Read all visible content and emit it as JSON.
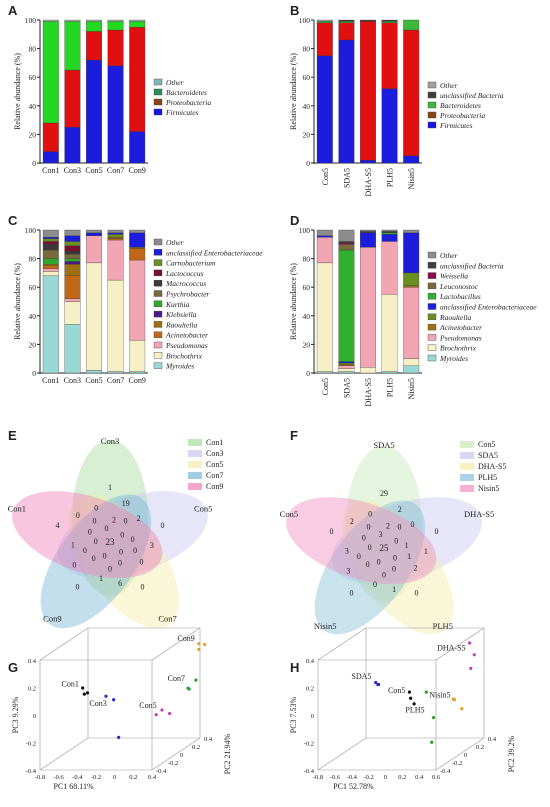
{
  "panels": {
    "A": {
      "letter": "A",
      "type": "stacked-bar",
      "ylabel": "Relative abundance (%)",
      "yticks": [
        "0",
        "20",
        "40",
        "60",
        "80",
        "100"
      ],
      "ylim": [
        0,
        100
      ],
      "categories": [
        "Con1",
        "Con3",
        "Con5",
        "Con7",
        "Con9"
      ],
      "legend": [
        "Other",
        "Bacteroidetes",
        "Proteobacteria",
        "Firmicutes"
      ],
      "colors": [
        "#7fb7bf",
        "#2e8b57",
        "#8b4513",
        "#1414e0"
      ],
      "series": [
        {
          "name": "Firmicutes",
          "color": "#1c1cdc",
          "values": [
            8,
            25,
            72,
            68,
            22
          ]
        },
        {
          "name": "Proteobacteria",
          "color": "#e01010",
          "values": [
            20,
            40,
            20,
            25,
            73
          ]
        },
        {
          "name": "Bacteroidetes",
          "color": "#22d822",
          "values": [
            71,
            34,
            7,
            6,
            4
          ]
        },
        {
          "name": "Other",
          "color": "#b0b0b0",
          "values": [
            1,
            1,
            1,
            1,
            1
          ]
        }
      ]
    },
    "B": {
      "letter": "B",
      "type": "stacked-bar",
      "ylabel": "Relative abundance (%)",
      "yticks": [
        "0",
        "20",
        "40",
        "60",
        "80",
        "100"
      ],
      "ylim": [
        0,
        100
      ],
      "categories": [
        "Con5",
        "SDA5",
        "DHA-S5",
        "PLH5",
        "Nisin5"
      ],
      "legend": [
        "Other",
        "unclassified Bacteria",
        "Bacteroidetes",
        "Proteobacteria",
        "Firmicutes"
      ],
      "colors": [
        "#a0a0a0",
        "#404040",
        "#3cb83c",
        "#8b4513",
        "#1414e0"
      ],
      "series": [
        {
          "name": "Firmicutes",
          "color": "#1c1cdc",
          "values": [
            75,
            86,
            2,
            52,
            5
          ]
        },
        {
          "name": "Proteobacteria",
          "color": "#e01010",
          "values": [
            23,
            12,
            97,
            46,
            88
          ]
        },
        {
          "name": "Bacteroidetes",
          "color": "#3cb83c",
          "values": [
            1,
            1,
            0,
            1,
            7
          ]
        },
        {
          "name": "unclassified Bacteria",
          "color": "#404040",
          "values": [
            0,
            1,
            1,
            1,
            0
          ]
        },
        {
          "name": "Other",
          "color": "#a0a0a0",
          "values": [
            1,
            0,
            0,
            0,
            0
          ]
        }
      ]
    },
    "C": {
      "letter": "C",
      "type": "stacked-bar",
      "ylabel": "Relative abundance (%)",
      "yticks": [
        "0",
        "20",
        "40",
        "60",
        "80",
        "100"
      ],
      "ylim": [
        0,
        100
      ],
      "categories": [
        "Con1",
        "Con3",
        "Con5",
        "Con7",
        "Con9"
      ],
      "legend": [
        "Other",
        "unclassified Enterobacteriaceae",
        "Carnobacterium",
        "Lactococcus",
        "Macrococcus",
        "Psychrobacter",
        "Kurthia",
        "Klebsiella",
        "Raoultella",
        "Acinetobacter",
        "Pseudomonas",
        "Brochothrix",
        "Myroides"
      ],
      "colors": [
        "#8c8c8c",
        "#1c1cdc",
        "#6b8e23",
        "#7a1030",
        "#3a3a3a",
        "#7a6a3a",
        "#2fa82f",
        "#4a1a8a",
        "#a07010",
        "#c06818",
        "#f2a6b4",
        "#f7efc6",
        "#9ad8d6"
      ],
      "series": [
        {
          "name": "Myroides",
          "color": "#9ad8d6",
          "values": [
            68,
            34,
            2,
            1,
            1
          ]
        },
        {
          "name": "Brochothrix",
          "color": "#f7efc6",
          "values": [
            3,
            16,
            75,
            64,
            22
          ]
        },
        {
          "name": "Pseudomonas",
          "color": "#f2a6b4",
          "values": [
            2,
            2,
            19,
            28,
            56
          ]
        },
        {
          "name": "Acinetobacter",
          "color": "#c06818",
          "values": [
            2,
            16,
            0,
            1,
            8
          ]
        },
        {
          "name": "Raoultella",
          "color": "#a07010",
          "values": [
            1,
            8,
            0,
            1,
            1
          ]
        },
        {
          "name": "Klebsiella",
          "color": "#4a1a8a",
          "values": [
            0,
            2,
            0,
            0,
            0
          ]
        },
        {
          "name": "Kurthia",
          "color": "#2fa82f",
          "values": [
            4,
            2,
            0,
            0,
            0
          ]
        },
        {
          "name": "Psychrobacter",
          "color": "#7a6a3a",
          "values": [
            6,
            3,
            0,
            0,
            0
          ]
        },
        {
          "name": "Macrococcus",
          "color": "#3a3a3a",
          "values": [
            4,
            2,
            0,
            0,
            0
          ]
        },
        {
          "name": "Lactococcus",
          "color": "#7a1030",
          "values": [
            2,
            4,
            0,
            0,
            0
          ]
        },
        {
          "name": "Carnobacterium",
          "color": "#6b8e23",
          "values": [
            2,
            3,
            0,
            2,
            0
          ]
        },
        {
          "name": "unclassified Enterobacteriaceae",
          "color": "#1c1cdc",
          "values": [
            1,
            4,
            2,
            1,
            10
          ]
        },
        {
          "name": "Other",
          "color": "#8c8c8c",
          "values": [
            5,
            4,
            2,
            2,
            2
          ]
        }
      ]
    },
    "D": {
      "letter": "D",
      "type": "stacked-bar",
      "ylabel": "Relative abundance (%)",
      "yticks": [
        "0",
        "20",
        "40",
        "60",
        "80",
        "100"
      ],
      "ylim": [
        0,
        100
      ],
      "categories": [
        "Con5",
        "SDA5",
        "DHA-S5",
        "PLH5",
        "Nisin5"
      ],
      "legend": [
        "Other",
        "unclassified Bacteria",
        "Weissella",
        "Leuconostoc",
        "Lactobacillus",
        "unclassified Enterobacteriaceae",
        "Raoultella",
        "Acinetobacter",
        "Pseudomonas",
        "Brochothrix",
        "Myroides"
      ],
      "colors": [
        "#8c8c8c",
        "#404040",
        "#8b0a50",
        "#7a6a3a",
        "#2fb02f",
        "#1c1cdc",
        "#6b8e23",
        "#a07010",
        "#f2a6b4",
        "#f7efc6",
        "#9ad8d6"
      ],
      "series": [
        {
          "name": "Myroides",
          "color": "#9ad8d6",
          "values": [
            1,
            1,
            0,
            1,
            5
          ]
        },
        {
          "name": "Brochothrix",
          "color": "#f7efc6",
          "values": [
            76,
            2,
            4,
            54,
            5
          ]
        },
        {
          "name": "Pseudomonas",
          "color": "#f2a6b4",
          "values": [
            18,
            2,
            84,
            37,
            50
          ]
        },
        {
          "name": "Acinetobacter",
          "color": "#a07010",
          "values": [
            0,
            1,
            0,
            0,
            1
          ]
        },
        {
          "name": "Raoultella",
          "color": "#6b8e23",
          "values": [
            0,
            1,
            0,
            0,
            9
          ]
        },
        {
          "name": "unclassified Enterobacteriaceae",
          "color": "#1c1cdc",
          "values": [
            1,
            1,
            10,
            5,
            28
          ]
        },
        {
          "name": "Lactobacillus",
          "color": "#2fb02f",
          "values": [
            0,
            78,
            0,
            1,
            0
          ]
        },
        {
          "name": "Leuconostoc",
          "color": "#7a6a3a",
          "values": [
            0,
            4,
            0,
            0,
            0
          ]
        },
        {
          "name": "Weissella",
          "color": "#8b0a50",
          "values": [
            0,
            1,
            0,
            0,
            0
          ]
        },
        {
          "name": "unclassified Bacteria",
          "color": "#404040",
          "values": [
            0,
            1,
            1,
            1,
            0
          ]
        },
        {
          "name": "Other",
          "color": "#8c8c8c",
          "values": [
            4,
            8,
            1,
            1,
            2
          ]
        }
      ]
    },
    "E": {
      "letter": "E",
      "type": "venn",
      "sets": [
        {
          "name": "Con1",
          "color": "#a8dca0"
        },
        {
          "name": "Con3",
          "color": "#c8c8f0"
        },
        {
          "name": "Con5",
          "color": "#f4eda8"
        },
        {
          "name": "Con7",
          "color": "#7ab8d8"
        },
        {
          "name": "Con9",
          "color": "#f080b8"
        }
      ],
      "unique_labels": [
        {
          "set": "Con3",
          "text": "Con3"
        },
        {
          "set": "Con5",
          "text": "Con5"
        },
        {
          "set": "Con7",
          "text": "Con7"
        },
        {
          "set": "Con9",
          "text": "Con9"
        },
        {
          "set": "Con1",
          "text": "Con1"
        }
      ],
      "numbers": [
        "1",
        "0",
        "0",
        "0",
        "4",
        "19",
        "3",
        "6",
        "0",
        "0",
        "0",
        "2",
        "0",
        "1",
        "1",
        "0",
        "0",
        "0",
        "0",
        "0",
        "2",
        "0",
        "0",
        "0",
        "0",
        "0",
        "0",
        "0",
        "0",
        "0",
        "23"
      ]
    },
    "F": {
      "letter": "F",
      "type": "venn",
      "sets": [
        {
          "name": "Con5",
          "color": "#c8e8b8"
        },
        {
          "name": "SDA5",
          "color": "#c8c8f0"
        },
        {
          "name": "DHA-S5",
          "color": "#f4eda8"
        },
        {
          "name": "PLH5",
          "color": "#88c0d8"
        },
        {
          "name": "Nisin5",
          "color": "#f090c0"
        }
      ],
      "unique_labels": [
        {
          "set": "SDA5",
          "text": "SDA5"
        },
        {
          "set": "DHA-S5",
          "text": "DHA-S5"
        },
        {
          "set": "PLH5",
          "text": "PLH5"
        },
        {
          "set": "Nisin5",
          "text": "Nisin5"
        },
        {
          "set": "Con5",
          "text": "Con5"
        }
      ],
      "numbers": [
        "29",
        "0",
        "0",
        "0",
        "0",
        "2",
        "1",
        "1",
        "3",
        "2",
        "0",
        "0",
        "2",
        "0",
        "3",
        "0",
        "1",
        "0",
        "0",
        "0",
        "2",
        "1",
        "0",
        "0",
        "0",
        "3",
        "0",
        "0",
        "0",
        "0",
        "25"
      ]
    },
    "G": {
      "letter": "G",
      "type": "scatter3d",
      "x_label": "PC1 68.11%",
      "y_label": "PC2 21.94%",
      "z_label": "PC3 9.29%",
      "x_ticks": [
        "-0.8",
        "-0.6",
        "-0.4",
        "-0.2",
        "0",
        "0.2",
        "0.4"
      ],
      "y_ticks": [
        "0.4",
        "0.2",
        "0",
        "-0.2",
        "-0.4"
      ],
      "z_ticks": [
        "0.4",
        "0.2",
        "0",
        "-0.2",
        "-0.4"
      ],
      "groups": [
        {
          "name": "Con1",
          "color": "#111111",
          "points": [
            [
              -0.6,
              0.0,
              0.08
            ],
            [
              -0.58,
              0.05,
              0.03
            ],
            [
              -0.55,
              -0.05,
              0.05
            ]
          ]
        },
        {
          "name": "Con3",
          "color": "#2a2ac8",
          "points": [
            [
              -0.35,
              0.0,
              0.02
            ],
            [
              -0.3,
              0.05,
              -0.02
            ],
            [
              -0.15,
              -0.1,
              -0.25
            ]
          ]
        },
        {
          "name": "Con5",
          "color": "#c040c0",
          "points": [
            [
              0.22,
              -0.05,
              -0.1
            ],
            [
              0.25,
              0.0,
              -0.08
            ],
            [
              0.3,
              0.05,
              -0.12
            ]
          ]
        },
        {
          "name": "Con7",
          "color": "#2ea02e",
          "points": [
            [
              0.4,
              0.2,
              0.02
            ],
            [
              0.42,
              0.3,
              0.05
            ],
            [
              0.38,
              0.25,
              0.0
            ]
          ]
        },
        {
          "name": "Con9",
          "color": "#e0a020",
          "points": [
            [
              0.42,
              0.35,
              0.3
            ],
            [
              0.45,
              0.4,
              0.28
            ],
            [
              0.4,
              0.38,
              0.25
            ]
          ]
        }
      ]
    },
    "H": {
      "letter": "H",
      "type": "scatter3d",
      "x_label": "PC1 52.78%",
      "y_label": "PC2 39.2%",
      "z_label": "PC3 7.53%",
      "x_ticks": [
        "-0.8",
        "-0.6",
        "-0.4",
        "-0.2",
        "0",
        "0.2",
        "0.4",
        "0.6"
      ],
      "y_ticks": [
        "0.4",
        "0.2",
        "0",
        "-0.2",
        "-0.4"
      ],
      "z_ticks": [
        "0.4",
        "0.2",
        "0",
        "-0.2",
        "-0.4"
      ],
      "groups": [
        {
          "name": "SDA5",
          "color": "#2a2ac8",
          "points": [
            [
              -0.4,
              0.0,
              0.12
            ],
            [
              -0.38,
              0.02,
              0.1
            ],
            [
              -0.36,
              -0.02,
              0.11
            ]
          ]
        },
        {
          "name": "Con5",
          "color": "#111111",
          "points": [
            [
              0.0,
              0.0,
              0.05
            ],
            [
              0.02,
              0.05,
              -0.05
            ],
            [
              0.05,
              -0.05,
              0.02
            ]
          ]
        },
        {
          "name": "PLH5",
          "color": "#2ea02e",
          "points": [
            [
              0.2,
              0.0,
              0.05
            ],
            [
              0.25,
              0.05,
              -0.15
            ],
            [
              0.3,
              -0.05,
              -0.3
            ]
          ]
        },
        {
          "name": "DHA-S5",
          "color": "#c040c0",
          "points": [
            [
              0.5,
              0.3,
              0.32
            ],
            [
              0.52,
              0.35,
              0.22
            ],
            [
              0.55,
              0.25,
              0.15
            ]
          ]
        },
        {
          "name": "Nisin5",
          "color": "#e0a020",
          "points": [
            [
              0.5,
              0.05,
              -0.02
            ],
            [
              0.55,
              0.1,
              -0.1
            ],
            [
              0.52,
              0.0,
              0.0
            ]
          ]
        }
      ]
    }
  }
}
